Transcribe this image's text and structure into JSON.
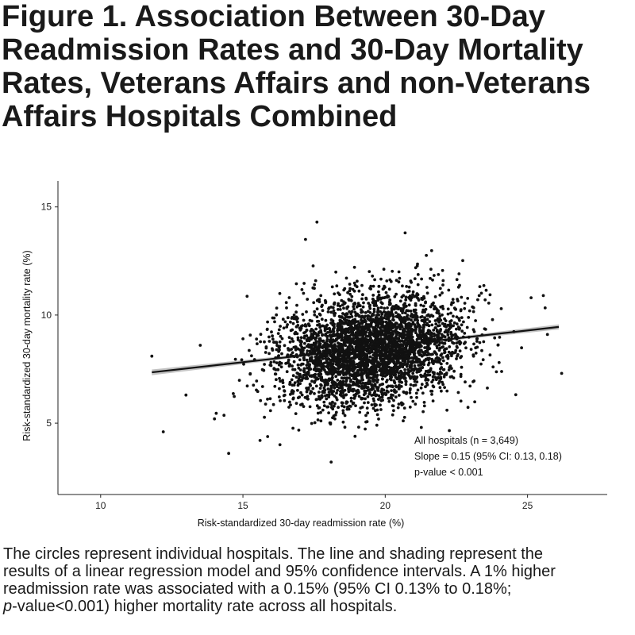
{
  "figure": {
    "title_lines": [
      "Figure 1. Association Between 30-Day",
      "Readmission Rates and 30-Day Mortality",
      "Rates, Veterans Affairs and non-Veterans",
      "Affairs Hospitals Combined"
    ],
    "caption_lines": [
      "The circles represent individual hospitals. The line and shading represent the",
      "results of a linear regression model and 95% confidence intervals. A 1% higher",
      "readmission rate was associated with a 0.15% (95% CI 0.13% to 0.18%;",
      "-value<0.001) higher mortality rate across all hospitals."
    ],
    "caption_italic_prefix": "p"
  },
  "chart_data": {
    "type": "scatter",
    "xlabel": "Risk-standardized 30-day readmission rate (%)",
    "ylabel": "Risk-standardized 30-day mortality rate (%)",
    "xlim": [
      8.5,
      27.8
    ],
    "ylim": [
      1.7,
      16.2
    ],
    "x_ticks": [
      10,
      15,
      20,
      25
    ],
    "y_ticks": [
      5,
      10,
      15
    ],
    "grid": false,
    "legend": "none",
    "annotation_lines": [
      "All hospitals (n = 3,649)",
      "Slope = 0.15 (95% CI: 0.13, 0.18)",
      "p-value < 0.001"
    ],
    "point_color": "#111111",
    "regression": {
      "x_start": 11.8,
      "y_start": 7.35,
      "x_end": 26.1,
      "y_end": 9.45,
      "line_color": "#111111",
      "band_color": "#bdbdbd"
    },
    "distribution": {
      "n": 3649,
      "x_mean": 19.5,
      "x_sd": 1.6,
      "y_mean": 8.4,
      "y_sd": 1.25,
      "slope": 0.15
    },
    "notable_points": [
      {
        "x": 17.6,
        "y": 14.3
      },
      {
        "x": 17.2,
        "y": 13.5
      },
      {
        "x": 20.7,
        "y": 13.8
      },
      {
        "x": 18.1,
        "y": 3.2
      },
      {
        "x": 26.2,
        "y": 7.3
      },
      {
        "x": 11.8,
        "y": 8.1
      },
      {
        "x": 14.5,
        "y": 3.6
      },
      {
        "x": 15.0,
        "y": 8.9
      },
      {
        "x": 12.2,
        "y": 4.6
      },
      {
        "x": 23.3,
        "y": 10.9
      },
      {
        "x": 25.7,
        "y": 9.1
      },
      {
        "x": 24.0,
        "y": 7.8
      },
      {
        "x": 13.0,
        "y": 6.3
      },
      {
        "x": 16.3,
        "y": 4.0
      },
      {
        "x": 15.6,
        "y": 4.2
      },
      {
        "x": 14.0,
        "y": 5.2
      },
      {
        "x": 13.5,
        "y": 8.6
      },
      {
        "x": 16.8,
        "y": 10.0
      }
    ]
  }
}
